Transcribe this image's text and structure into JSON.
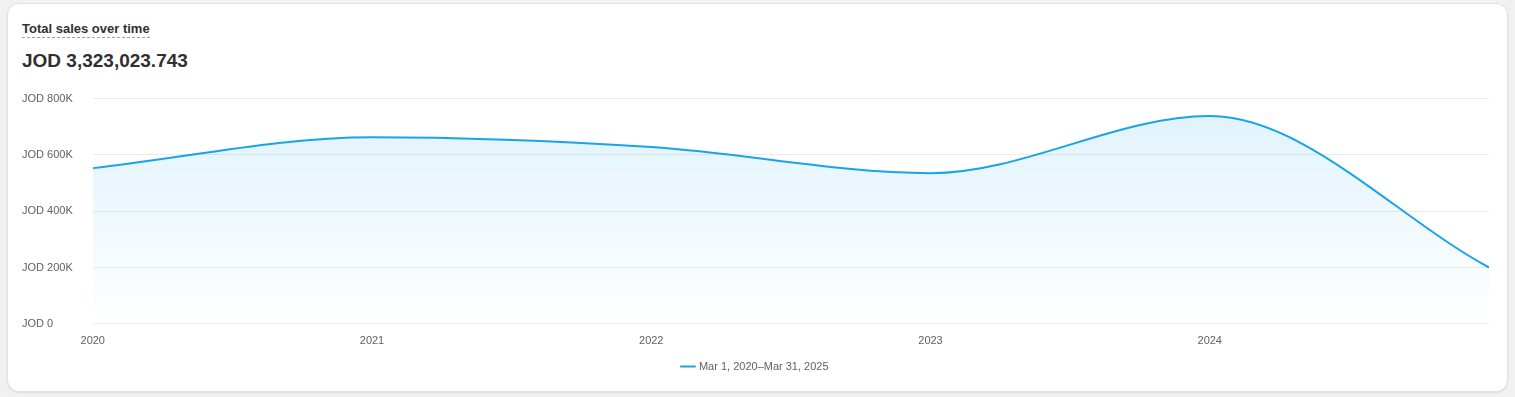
{
  "chart_data": {
    "type": "line",
    "title": "Total sales over time",
    "subtitle": "JOD 3,323,023.743",
    "categories": [
      "2020",
      "2021",
      "2022",
      "2023",
      "2024",
      null
    ],
    "series": [
      {
        "name": "Mar 1, 2020–Mar 31, 2025",
        "color": "#1ba3e8",
        "values": [
          553000,
          663000,
          628000,
          535000,
          738000,
          200000
        ]
      }
    ],
    "ylim": [
      0,
      800000
    ],
    "yticks": [
      {
        "value": 0,
        "label": "JOD 0"
      },
      {
        "value": 200000,
        "label": "JOD 200K"
      },
      {
        "value": 400000,
        "label": "JOD 400K"
      },
      {
        "value": 600000,
        "label": "JOD 600K"
      },
      {
        "value": 800000,
        "label": "JOD 800K"
      }
    ],
    "grid": true,
    "legend": "bottom"
  }
}
